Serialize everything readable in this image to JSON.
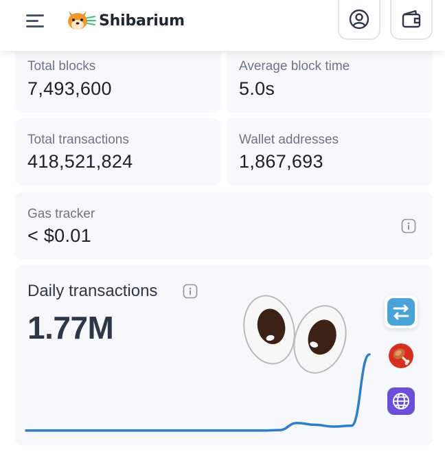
{
  "header": {
    "brand_name": "Shibarium",
    "menu_icon": "hamburger-menu-icon",
    "logo_icon": "shiba-inu-logo-icon",
    "profile_icon": "user-profile-icon",
    "wallet_icon": "wallet-icon"
  },
  "stats": {
    "total_blocks": {
      "label": "Total blocks",
      "value": "7,493,600"
    },
    "average_block_time": {
      "label": "Average block time",
      "value": "5.0s"
    },
    "total_transactions": {
      "label": "Total transactions",
      "value": "418,521,824"
    },
    "wallet_addresses": {
      "label": "Wallet addresses",
      "value": "1,867,693"
    },
    "gas_tracker": {
      "label": "Gas tracker",
      "value": "< $0.01",
      "info_icon": "info-icon"
    }
  },
  "daily_transactions": {
    "title": "Daily transactions",
    "value": "1.77M",
    "info_icon": "info-icon"
  },
  "overlay": {
    "eyes_icon": "eyes-emoji-icon",
    "side_icons": [
      "swap-arrows-icon",
      "meat-on-bone-icon",
      "globe-icon"
    ]
  },
  "colors": {
    "card_bg": "#f6f8fb",
    "line": "#2f7fc8",
    "swap": "#4aa3d8",
    "meat_bg": "#d62f1f",
    "globe_bg": "#6b4fd8"
  },
  "chart_data": {
    "type": "line",
    "title": "Daily transactions",
    "series": [
      {
        "values": [
          0.05,
          0.05,
          0.05,
          0.05,
          0.05,
          0.05,
          0.05,
          0.05,
          0.05,
          0.05,
          0.05,
          0.05,
          0.05,
          0.05,
          0.06,
          0.22,
          0.18,
          0.14,
          0.16,
          1.77
        ]
      }
    ],
    "xlabel": "",
    "ylabel": "",
    "grid": false
  }
}
